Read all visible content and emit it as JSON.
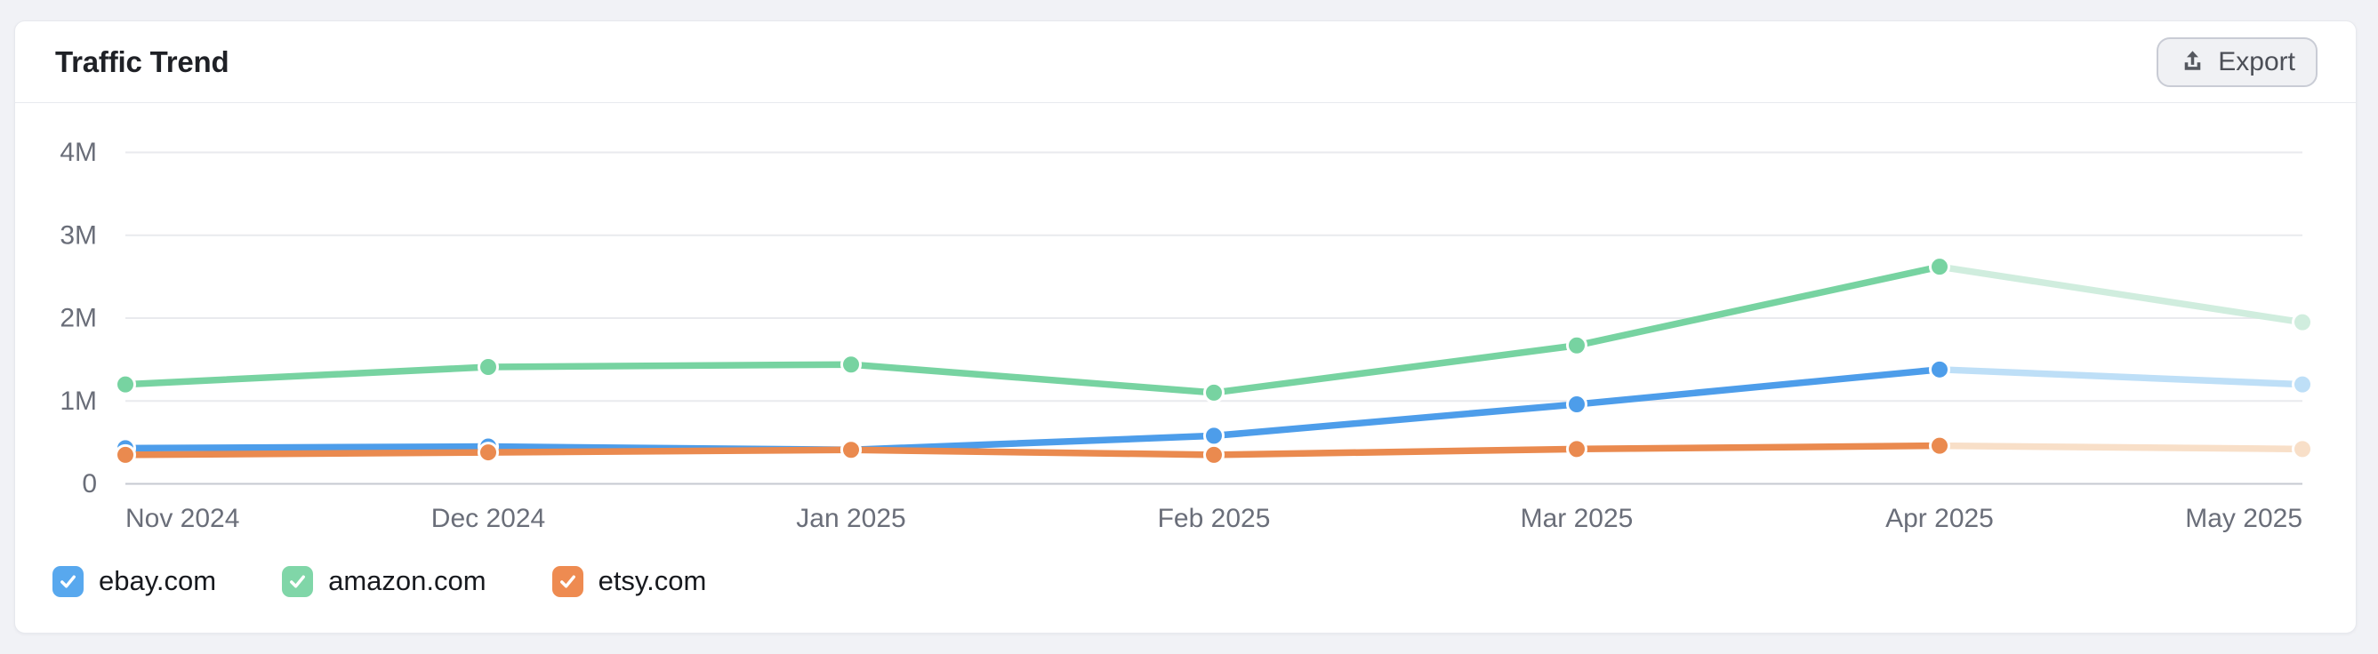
{
  "card": {
    "title": "Traffic Trend",
    "export_button": {
      "label": "Export",
      "icon": "upload-icon"
    }
  },
  "chart_data": {
    "type": "line",
    "title": "Traffic Trend",
    "x": [
      "Nov 2024",
      "Dec 2024",
      "Jan 2025",
      "Feb 2025",
      "Mar 2025",
      "Apr 2025",
      "May 2025"
    ],
    "y_ticks": [
      {
        "label": "0",
        "value": 0
      },
      {
        "label": "1M",
        "value": 1000000
      },
      {
        "label": "2M",
        "value": 2000000
      },
      {
        "label": "3M",
        "value": 3000000
      },
      {
        "label": "4M",
        "value": 4000000
      }
    ],
    "ylim": [
      0,
      4000000
    ],
    "grid": "horizontal",
    "legend_position": "bottom-left",
    "last_segment_faded": true,
    "series": [
      {
        "name": "ebay.com",
        "checked": true,
        "color": "#4D9DEA",
        "faded_color": "#BEDFF7",
        "checkbox_color": "#58A8EE",
        "values": [
          430000,
          450000,
          410000,
          580000,
          960000,
          1380000,
          1200000
        ]
      },
      {
        "name": "amazon.com",
        "checked": true,
        "color": "#77D3A1",
        "faded_color": "#D0EDDE",
        "checkbox_color": "#80D6A8",
        "values": [
          1200000,
          1410000,
          1440000,
          1100000,
          1670000,
          2620000,
          1950000
        ]
      },
      {
        "name": "etsy.com",
        "checked": true,
        "color": "#EA8A4F",
        "faded_color": "#F8DFC8",
        "checkbox_color": "#EE8B51",
        "values": [
          350000,
          380000,
          410000,
          350000,
          420000,
          460000,
          420000
        ]
      }
    ]
  },
  "colors": {
    "page_background": "#F1F2F6",
    "card_background": "#FFFFFF",
    "gridline": "#E9EAEE",
    "zero_axis_line": "#C6C9D1",
    "axis_text": "#6A6E79"
  }
}
